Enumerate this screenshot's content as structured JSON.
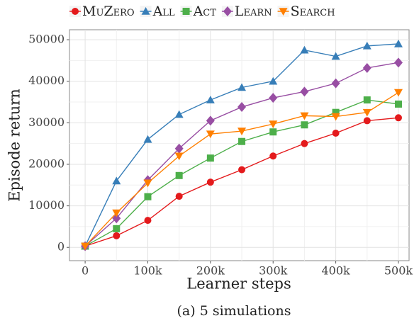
{
  "chart_data": {
    "type": "line",
    "x_label": "Learner steps",
    "y_label": "Episode return",
    "caption": "(a) 5 simulations",
    "x": [
      0,
      50000,
      100000,
      150000,
      200000,
      250000,
      300000,
      350000,
      400000,
      450000,
      500000
    ],
    "series": [
      {
        "name": "MuZero",
        "color": "#e41a1c",
        "marker": "circle",
        "values": [
          300,
          2800,
          6500,
          12300,
          15700,
          18700,
          22000,
          25000,
          27500,
          30500,
          31200
        ]
      },
      {
        "name": "All",
        "color": "#377eb8",
        "marker": "triangle",
        "values": [
          300,
          16000,
          26000,
          32000,
          35500,
          38500,
          40000,
          47500,
          46000,
          48500,
          49000
        ]
      },
      {
        "name": "Act",
        "color": "#4daf4a",
        "marker": "square",
        "values": [
          300,
          4500,
          12200,
          17300,
          21500,
          25500,
          27800,
          29500,
          32500,
          35500,
          34500
        ]
      },
      {
        "name": "Learn",
        "color": "#984ea3",
        "marker": "diamond",
        "values": [
          300,
          7000,
          16200,
          23800,
          30500,
          33800,
          36000,
          37500,
          39500,
          43200,
          44500
        ]
      },
      {
        "name": "Search",
        "color": "#ff7f00",
        "marker": "triangle-down",
        "values": [
          300,
          8300,
          15500,
          22000,
          27300,
          28000,
          29700,
          31700,
          31500,
          32500,
          37300
        ]
      }
    ],
    "xlim": [
      -25000,
      517000
    ],
    "xticks": [
      0,
      {
        "value": 100000,
        "label": "100k"
      },
      {
        "value": 200000,
        "label": "200k"
      },
      {
        "value": 300000,
        "label": "300k"
      },
      {
        "value": 400000,
        "label": "400k"
      },
      {
        "value": 500000,
        "label": "500k"
      }
    ],
    "ylim": [
      -3200,
      52400
    ],
    "yticks": [
      0,
      10000,
      20000,
      30000,
      40000,
      50000
    ],
    "grid": true,
    "legend": "top"
  }
}
